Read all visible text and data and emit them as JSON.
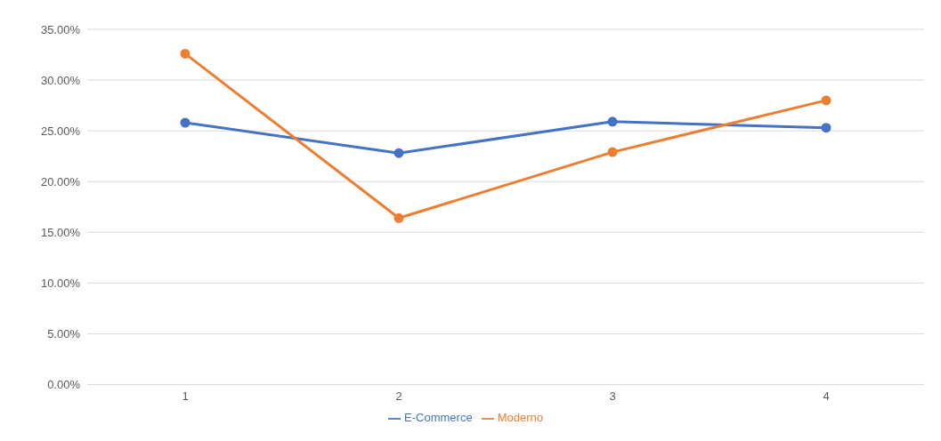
{
  "chart_data": {
    "type": "line",
    "categories": [
      "1",
      "2",
      "3",
      "4"
    ],
    "series": [
      {
        "name": "E-Commerce",
        "color": "#4472c4",
        "values": [
          25.8,
          22.8,
          25.9,
          25.3
        ]
      },
      {
        "name": "Moderno",
        "color": "#ed7d31",
        "values": [
          32.6,
          16.4,
          22.9,
          28.0
        ]
      }
    ],
    "ylim": [
      0,
      35
    ],
    "yticks": [
      {
        "value": 0,
        "label": "0.00%"
      },
      {
        "value": 5,
        "label": "5.00%"
      },
      {
        "value": 10,
        "label": "10.00%"
      },
      {
        "value": 15,
        "label": "15.00%"
      },
      {
        "value": 20,
        "label": "20.00%"
      },
      {
        "value": 25,
        "label": "25.00%"
      },
      {
        "value": 30,
        "label": "30.00%"
      },
      {
        "value": 35,
        "label": "35.00%"
      }
    ],
    "grid": "y",
    "legend": "bottom",
    "marker": "circle",
    "line_style": "solid"
  }
}
